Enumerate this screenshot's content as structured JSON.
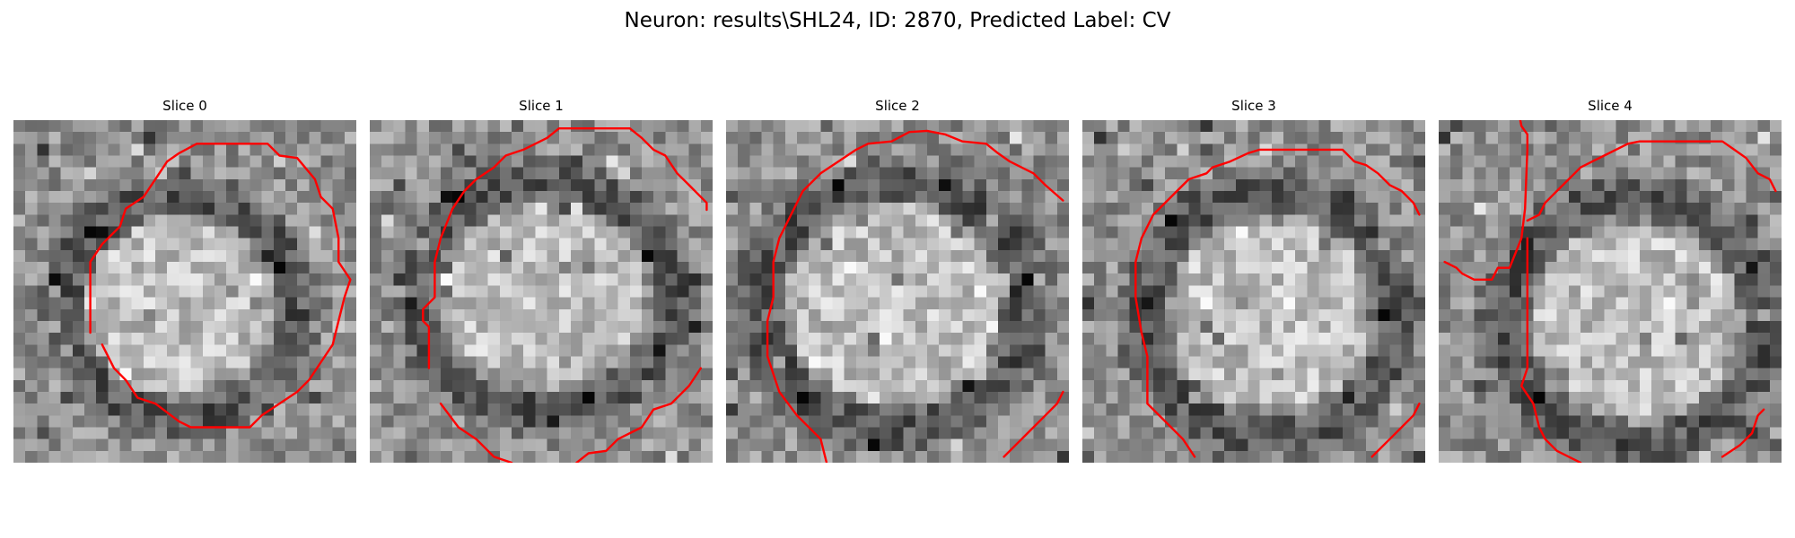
{
  "figure": {
    "title": "Neuron: results\\SHL24, ID: 2870, Predicted Label: CV"
  },
  "slices": [
    {
      "label": "Slice 0"
    },
    {
      "label": "Slice 1"
    },
    {
      "label": "Slice 2"
    },
    {
      "label": "Slice 3"
    },
    {
      "label": "Slice 4"
    }
  ],
  "colors": {
    "contour": "#ff0000",
    "colormap": "gray",
    "background": "#ffffff"
  }
}
